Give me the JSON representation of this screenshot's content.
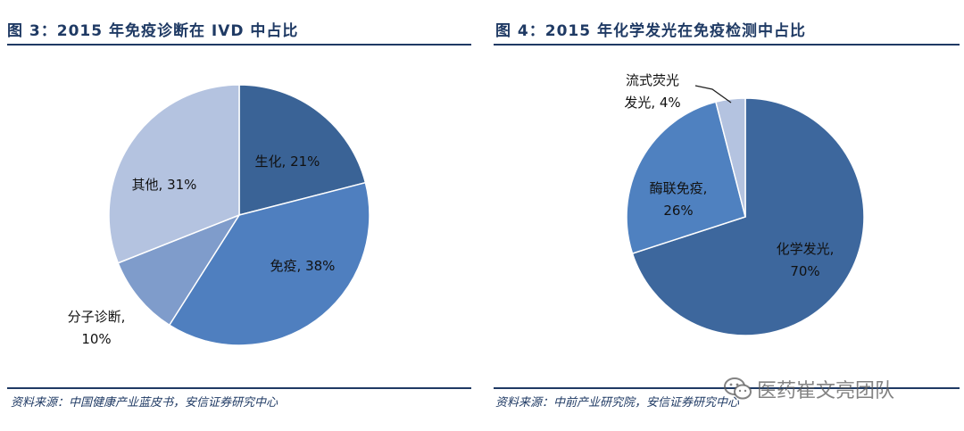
{
  "chart_data": [
    {
      "type": "pie",
      "title": "图 3：2015 年免疫诊断在 IVD 中占比",
      "start_angle_deg": 0,
      "direction": "clockwise",
      "slices": [
        {
          "label": "生化",
          "value": 21,
          "display": "生化, 21%",
          "color": "#3a6396"
        },
        {
          "label": "免疫",
          "value": 38,
          "display": "免疫, 38%",
          "color": "#4f7fbf"
        },
        {
          "label": "分子诊断",
          "value": 10,
          "display": "分子诊断,|10%",
          "color": "#7f9ccb"
        },
        {
          "label": "其他",
          "value": 31,
          "display": "其他, 31%",
          "color": "#b4c3e0"
        }
      ],
      "source": "资料来源：中国健康产业蓝皮书，安信证券研究中心"
    },
    {
      "type": "pie",
      "title": "图 4：2015 年化学发光在免疫检测中占比",
      "start_angle_deg": 0,
      "direction": "clockwise",
      "slices": [
        {
          "label": "化学发光",
          "value": 70,
          "display": "化学发光,|70%",
          "color": "#3d679d"
        },
        {
          "label": "酶联免疫",
          "value": 26,
          "display": "酶联免疫,|26%",
          "color": "#4f81c0"
        },
        {
          "label": "流式荧光发光",
          "value": 4,
          "display": "流式荧光|发光, 4%",
          "color": "#b4c3e0"
        }
      ],
      "source": "资料来源：中前产业研究院，安信证券研究中心"
    }
  ],
  "watermark": {
    "text": "医药崔文亮团队",
    "icon": "wechat-icon"
  }
}
